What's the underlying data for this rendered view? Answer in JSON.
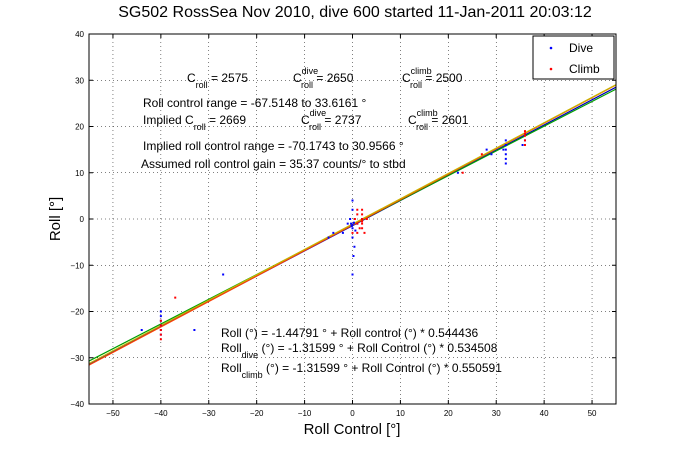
{
  "chart_data": {
    "type": "scatter",
    "title": "SG502 RossSea Nov 2010, dive 600 started 11-Jan-2011 20:03:12",
    "xlabel": "Roll Control [°]",
    "ylabel": "Roll [°]",
    "xlim": [
      -55,
      55
    ],
    "ylim": [
      -40,
      40
    ],
    "xticks": [
      -50,
      -40,
      -30,
      -20,
      -10,
      0,
      10,
      20,
      30,
      40,
      50
    ],
    "yticks": [
      -40,
      -30,
      -20,
      -10,
      0,
      10,
      20,
      30,
      40
    ],
    "grid": true,
    "legend": {
      "location": "top-right",
      "entries": [
        "Dive",
        "Climb"
      ]
    },
    "series": [
      {
        "name": "Dive",
        "color": "#0000ff",
        "marker": "point",
        "points": [
          [
            -40,
            -21
          ],
          [
            -40,
            -23
          ],
          [
            -40,
            -24
          ],
          [
            -40,
            -25
          ],
          [
            -40,
            -22
          ],
          [
            -40,
            -20
          ],
          [
            -0.3,
            -1
          ],
          [
            -0.2,
            -1.5
          ],
          [
            0,
            -2
          ],
          [
            0,
            -1.2
          ],
          [
            0.3,
            -0.8
          ],
          [
            -1,
            -1
          ],
          [
            0,
            4
          ],
          [
            0,
            2
          ],
          [
            0,
            -4
          ],
          [
            0.4,
            -6
          ],
          [
            0.2,
            -8
          ],
          [
            0,
            -12
          ],
          [
            -0.5,
            0
          ],
          [
            0.6,
            -2.5
          ],
          [
            1,
            -1
          ],
          [
            -2,
            -3
          ],
          [
            -4,
            -3
          ],
          [
            -5,
            -4
          ],
          [
            -27,
            -12
          ],
          [
            -33,
            -24
          ],
          [
            -44,
            -24
          ],
          [
            2,
            0
          ],
          [
            32,
            13
          ],
          [
            32,
            14
          ],
          [
            32,
            15
          ],
          [
            32,
            16
          ],
          [
            32,
            17
          ],
          [
            32,
            12
          ],
          [
            29,
            14
          ],
          [
            31.5,
            15
          ],
          [
            28,
            15
          ],
          [
            22,
            10
          ],
          [
            36,
            17
          ],
          [
            35.5,
            16
          ]
        ]
      },
      {
        "name": "Climb",
        "color": "#ff0000",
        "marker": "point",
        "points": [
          [
            -40,
            -22
          ],
          [
            -40,
            -24
          ],
          [
            -40,
            -25
          ],
          [
            -40,
            -26
          ],
          [
            -40,
            -23
          ],
          [
            -37,
            -17
          ],
          [
            2,
            0
          ],
          [
            2,
            -1
          ],
          [
            2,
            -2
          ],
          [
            2,
            1
          ],
          [
            2,
            -0.5
          ],
          [
            3,
            0
          ],
          [
            1,
            -1
          ],
          [
            1.5,
            -2
          ],
          [
            2.5,
            -3
          ],
          [
            0,
            -3
          ],
          [
            0.5,
            0
          ],
          [
            1,
            1
          ],
          [
            1,
            -3
          ],
          [
            36,
            17
          ],
          [
            36,
            18
          ],
          [
            36,
            19
          ],
          [
            36,
            16
          ],
          [
            36,
            18.5
          ],
          [
            27,
            14
          ],
          [
            23,
            10
          ],
          [
            2,
            2
          ],
          [
            1,
            2
          ]
        ]
      }
    ],
    "fits": [
      {
        "color": "#0000b4",
        "intercept": -1.44791,
        "slope": 0.544436
      },
      {
        "color": "#00a000",
        "intercept": -1.31599,
        "slope": 0.534508
      },
      {
        "color": "#ff4000",
        "intercept": -1.31599,
        "slope": 0.550591
      },
      {
        "color": "#c8b400",
        "intercept": -1.1,
        "slope": 0.548
      }
    ],
    "annotations": {
      "c_roll": {
        "base": "C",
        "sub": "roll",
        "value": " = 2575"
      },
      "c_dive": {
        "base": "C",
        "sup": "dive",
        "sub": "roll",
        "value": " = 2650"
      },
      "c_climb": {
        "base": "C",
        "sup": "climb",
        "sub": "roll",
        "value": " = 2500"
      },
      "roll_range": "Roll control range = -67.5148 to 33.6161 °",
      "implied_c_roll": {
        "prefix": "Implied C",
        "sub": "roll",
        "value": " = 2669"
      },
      "implied_c_dive": {
        "base": "C",
        "sup": "dive",
        "sub": "roll",
        "value": " = 2737"
      },
      "implied_c_climb": {
        "base": "C",
        "sup": "climb",
        "sub": "roll",
        "value": " = 2601"
      },
      "implied_range": "Implied roll control range = -70.1743 to 30.9566 °",
      "gain": "Assumed roll control gain = 35.37 counts/° to stbd",
      "fit_all": "Roll (°) = -1.44791 ° + Roll control (°) * 0.544436",
      "fit_dive": {
        "base": "Roll",
        "sub": "dive",
        "value": " (°) = -1.31599 ° + Roll Control (°) * 0.534508"
      },
      "fit_climb": {
        "base": "Roll",
        "sub": "climb",
        "value": " (°) = -1.31599 ° + Roll Control (°) * 0.550591"
      }
    }
  }
}
